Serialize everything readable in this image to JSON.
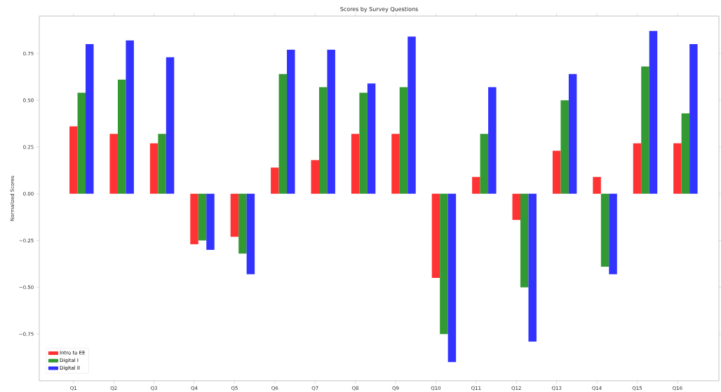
{
  "chart_data": {
    "type": "bar",
    "title": "Scores by Survey Questions",
    "ylabel": "Normalized Scores",
    "categories": [
      "Q1",
      "Q2",
      "Q3",
      "Q4",
      "Q5",
      "Q6",
      "Q7",
      "Q8",
      "Q9",
      "Q10",
      "Q11",
      "Q12",
      "Q13",
      "Q14",
      "Q15",
      "Q16"
    ],
    "series": [
      {
        "name": "Intro to EE",
        "color": "#ff3333",
        "values": [
          0.36,
          0.32,
          0.27,
          -0.27,
          -0.23,
          0.14,
          0.18,
          0.32,
          0.32,
          -0.45,
          0.09,
          -0.14,
          0.23,
          0.09,
          0.27,
          0.27
        ]
      },
      {
        "name": "Digital I",
        "color": "#339933",
        "values": [
          0.54,
          0.61,
          0.32,
          -0.25,
          -0.32,
          0.64,
          0.57,
          0.54,
          0.57,
          -0.75,
          0.32,
          -0.5,
          0.5,
          -0.39,
          0.68,
          0.43
        ]
      },
      {
        "name": "Digital II",
        "color": "#3333ff",
        "values": [
          0.8,
          0.82,
          0.73,
          -0.3,
          -0.43,
          0.77,
          0.77,
          0.59,
          0.84,
          -0.9,
          0.57,
          -0.79,
          0.64,
          -0.43,
          0.87,
          0.8
        ]
      }
    ],
    "ylim": [
      -1.0,
      0.95
    ],
    "yticks": [
      {
        "value": -0.75,
        "label": "−0.75"
      },
      {
        "value": -0.5,
        "label": "−0.50"
      },
      {
        "value": -0.25,
        "label": "−0.25"
      },
      {
        "value": 0,
        "label": "0.00"
      },
      {
        "value": 0.25,
        "label": "0.25"
      },
      {
        "value": 0.5,
        "label": "0.50"
      },
      {
        "value": 0.75,
        "label": "0.75"
      }
    ],
    "legend": "bottom left"
  }
}
